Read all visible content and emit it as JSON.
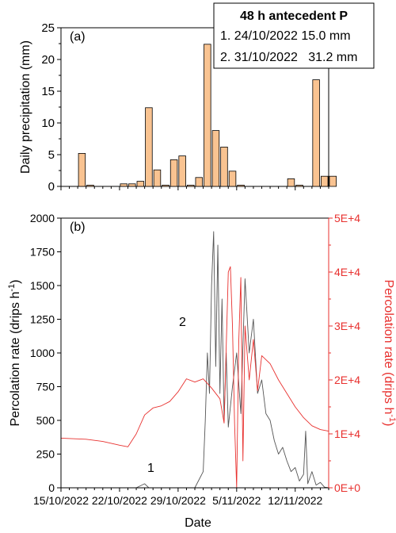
{
  "chart_data": [
    {
      "type": "bar",
      "panel_label": "(a)",
      "ylabel": "Daily precipitation (mm)",
      "ylim": [
        0,
        25
      ],
      "yticks": [
        0,
        5,
        10,
        15,
        20,
        25
      ],
      "x_start": "2022-10-15",
      "x_end": "2022-11-16",
      "bar_color": "#f9c391",
      "days": [
        "2022-10-15",
        "2022-10-16",
        "2022-10-17",
        "2022-10-18",
        "2022-10-19",
        "2022-10-20",
        "2022-10-21",
        "2022-10-22",
        "2022-10-23",
        "2022-10-24",
        "2022-10-25",
        "2022-10-26",
        "2022-10-27",
        "2022-10-28",
        "2022-10-29",
        "2022-10-30",
        "2022-10-31",
        "2022-11-01",
        "2022-11-02",
        "2022-11-03",
        "2022-11-04",
        "2022-11-05",
        "2022-11-06",
        "2022-11-07",
        "2022-11-08",
        "2022-11-09",
        "2022-11-10",
        "2022-11-11",
        "2022-11-12",
        "2022-11-13",
        "2022-11-14",
        "2022-11-15"
      ],
      "values": [
        0,
        0,
        5.2,
        0.2,
        0,
        0,
        0,
        0.4,
        0.4,
        0.8,
        12.4,
        2.6,
        0.2,
        4.2,
        4.8,
        0.2,
        1.4,
        22.4,
        8.8,
        6.2,
        2.4,
        0.2,
        0,
        0,
        0,
        0,
        0,
        1.2,
        0.2,
        0,
        16.8,
        1.6
      ],
      "extra_bars": [
        {
          "day": "2022-11-16",
          "value": 1.6
        }
      ],
      "legend_box": {
        "title": "48 h antecedent P",
        "entries": [
          "1. 24/10/2022 15.0 mm",
          "2. 31/10/2022   31.2 mm"
        ]
      }
    },
    {
      "type": "line",
      "panel_label": "(b)",
      "xlabel": "Date",
      "xticks": [
        "15/10/2022",
        "22/10/2022",
        "29/10/2022",
        "5/11/2022",
        "12/11/2022"
      ],
      "ylabel_left": "Percolation rate (drips h",
      "ylabel_right": "Percolation rate (drips h",
      "ylabel_unit_sup": "-1",
      "ylabel_close": ")",
      "left_ylim": [
        0,
        2000
      ],
      "left_yticks": [
        "0",
        "250",
        "500",
        "750",
        "1000",
        "1250",
        "1500",
        "1750",
        "2000"
      ],
      "right_ylim": [
        0,
        50000
      ],
      "right_yticks": [
        "0E+0",
        "1E+4",
        "2E+4",
        "3E+4",
        "4E+4",
        "5E+4"
      ],
      "annotations": [
        "1",
        "2"
      ],
      "series": [
        {
          "axis": "left",
          "color": "#555555",
          "points": [
            [
              "2022-10-15",
              0
            ],
            [
              "2022-10-24",
              0
            ],
            [
              "2022-10-25",
              30
            ],
            [
              "2022-10-25T12:00",
              0
            ],
            [
              "2022-10-31",
              0
            ],
            [
              "2022-11-01",
              120
            ],
            [
              "2022-11-01T06:00",
              500
            ],
            [
              "2022-11-01T12:00",
              1000
            ],
            [
              "2022-11-01T18:00",
              700
            ],
            [
              "2022-11-02",
              1500
            ],
            [
              "2022-11-02T06:00",
              1900
            ],
            [
              "2022-11-02T12:00",
              900
            ],
            [
              "2022-11-02T18:00",
              1800
            ],
            [
              "2022-11-03",
              700
            ],
            [
              "2022-11-03T06:00",
              1400
            ],
            [
              "2022-11-03T12:00",
              500
            ],
            [
              "2022-11-03T18:00",
              1000
            ],
            [
              "2022-11-04",
              450
            ],
            [
              "2022-11-04T12:00",
              750
            ],
            [
              "2022-11-05",
              1000
            ],
            [
              "2022-11-05T12:00",
              550
            ],
            [
              "2022-11-06",
              1550
            ],
            [
              "2022-11-06T12:00",
              1000
            ],
            [
              "2022-11-07",
              1250
            ],
            [
              "2022-11-07T12:00",
              700
            ],
            [
              "2022-11-08",
              800
            ],
            [
              "2022-11-08T12:00",
              550
            ],
            [
              "2022-11-09",
              500
            ],
            [
              "2022-11-09T12:00",
              350
            ],
            [
              "2022-11-10",
              250
            ],
            [
              "2022-11-10T12:00",
              300
            ],
            [
              "2022-11-11",
              200
            ],
            [
              "2022-11-11T12:00",
              120
            ],
            [
              "2022-11-12",
              150
            ],
            [
              "2022-11-12T12:00",
              50
            ],
            [
              "2022-11-13",
              100
            ],
            [
              "2022-11-13T06:00",
              420
            ],
            [
              "2022-11-13T12:00",
              30
            ],
            [
              "2022-11-14",
              120
            ],
            [
              "2022-11-14T12:00",
              20
            ],
            [
              "2022-11-15",
              40
            ],
            [
              "2022-11-15T12:00",
              5
            ],
            [
              "2022-11-16",
              0
            ]
          ]
        },
        {
          "axis": "right",
          "color": "#e8312f",
          "points": [
            [
              "2022-10-15",
              9200
            ],
            [
              "2022-10-18",
              9000
            ],
            [
              "2022-10-20",
              8600
            ],
            [
              "2022-10-22",
              7900
            ],
            [
              "2022-10-23",
              7600
            ],
            [
              "2022-10-24",
              10000
            ],
            [
              "2022-10-25",
              13500
            ],
            [
              "2022-10-26",
              14800
            ],
            [
              "2022-10-27",
              15200
            ],
            [
              "2022-10-28",
              16000
            ],
            [
              "2022-10-29",
              17800
            ],
            [
              "2022-10-30",
              20200
            ],
            [
              "2022-10-31",
              19600
            ],
            [
              "2022-11-01",
              20200
            ],
            [
              "2022-11-02",
              18500
            ],
            [
              "2022-11-03",
              16500
            ],
            [
              "2022-11-03T12:00",
              12000
            ],
            [
              "2022-11-04",
              40000
            ],
            [
              "2022-11-04T06:00",
              41000
            ],
            [
              "2022-11-04T12:00",
              30000
            ],
            [
              "2022-11-04T18:00",
              12000
            ],
            [
              "2022-11-05",
              0
            ],
            [
              "2022-11-05T06:00",
              27000
            ],
            [
              "2022-11-05T12:00",
              39000
            ],
            [
              "2022-11-05T18:00",
              5000
            ],
            [
              "2022-11-06",
              30000
            ],
            [
              "2022-11-06T12:00",
              20000
            ],
            [
              "2022-11-07",
              27500
            ],
            [
              "2022-11-07T12:00",
              18000
            ],
            [
              "2022-11-08",
              24500
            ],
            [
              "2022-11-09",
              23000
            ],
            [
              "2022-11-10",
              20000
            ],
            [
              "2022-11-11",
              17500
            ],
            [
              "2022-11-12",
              15000
            ],
            [
              "2022-11-13",
              13000
            ],
            [
              "2022-11-14",
              11500
            ],
            [
              "2022-11-15",
              10800
            ],
            [
              "2022-11-16",
              10500
            ]
          ]
        }
      ]
    }
  ]
}
